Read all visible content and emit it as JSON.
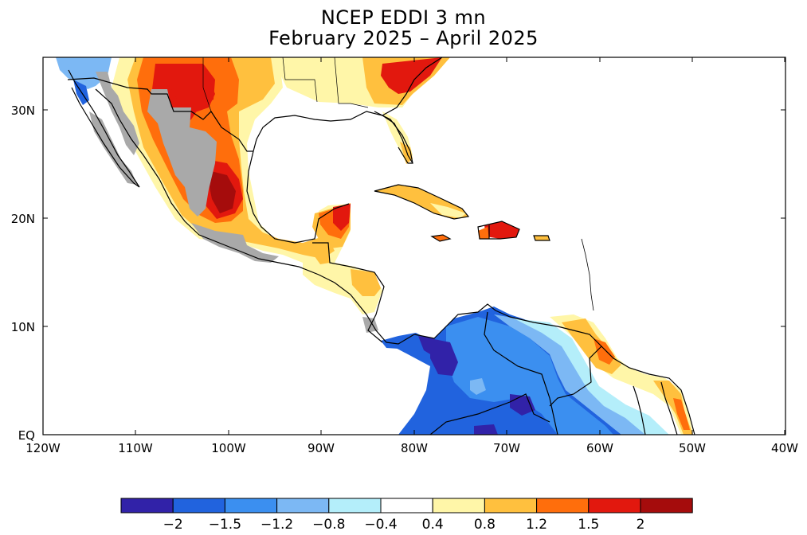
{
  "title": "NCEP EDDI 3 mn",
  "subtitle": "February 2025 – April 2025",
  "axes": {
    "lon_labels": [
      "120W",
      "110W",
      "100W",
      "90W",
      "80W",
      "70W",
      "60W",
      "50W",
      "40W"
    ],
    "lat_labels": [
      "EQ",
      "10N",
      "20N",
      "30N"
    ]
  },
  "colorbar": {
    "labels": [
      "-2",
      "-1.5",
      "-1.2",
      "-0.8",
      "-0.4",
      "0.4",
      "0.8",
      "1.2",
      "1.5",
      "2"
    ],
    "colors": [
      "#3122a8",
      "#2163de",
      "#3b8ff0",
      "#7cb8f4",
      "#b4eefa",
      "#ffffff",
      "#fff6a8",
      "#ffc03e",
      "#ff6e0c",
      "#e2180e",
      "#a50c0c"
    ]
  },
  "colors": {
    "land_no_data": "#a9a9a9",
    "border": "#000000"
  }
}
